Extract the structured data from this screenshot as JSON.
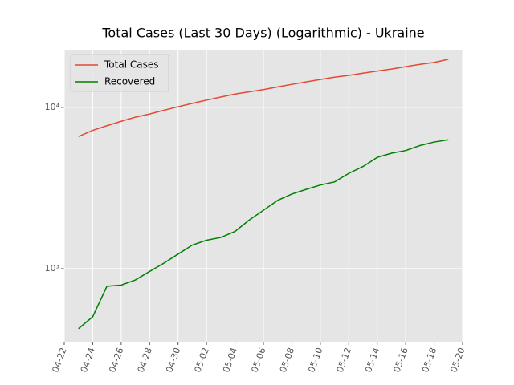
{
  "chart_data": {
    "type": "line",
    "title": "Total Cases (Last 30 Days) (Logarithmic) - Ukraine",
    "x": [
      "04-23",
      "04-24",
      "04-25",
      "04-26",
      "04-27",
      "04-28",
      "04-29",
      "04-30",
      "05-01",
      "05-02",
      "05-03",
      "05-04",
      "05-05",
      "05-06",
      "05-07",
      "05-08",
      "05-09",
      "05-10",
      "05-11",
      "05-12",
      "05-13",
      "05-14",
      "05-15",
      "05-16",
      "05-17",
      "05-18",
      "05-19"
    ],
    "series": [
      {
        "name": "Total Cases",
        "color": "#e24a33",
        "values": [
          6600,
          7200,
          7700,
          8200,
          8700,
          9100,
          9600,
          10100,
          10600,
          11100,
          11600,
          12100,
          12500,
          12900,
          13400,
          13900,
          14400,
          14900,
          15400,
          15800,
          16300,
          16800,
          17300,
          17900,
          18500,
          19000,
          19900
        ]
      },
      {
        "name": "Recovered",
        "color": "#008000",
        "values": [
          424,
          503,
          777,
          790,
          850,
          960,
          1080,
          1230,
          1400,
          1500,
          1560,
          1700,
          2000,
          2300,
          2650,
          2900,
          3100,
          3300,
          3450,
          3900,
          4300,
          4900,
          5200,
          5400,
          5800,
          6100,
          6300
        ]
      }
    ],
    "xlim": [
      "04-22",
      "05-20"
    ],
    "xticks": [
      "04-22",
      "04-24",
      "04-26",
      "04-28",
      "04-30",
      "05-02",
      "05-04",
      "05-06",
      "05-08",
      "05-10",
      "05-12",
      "05-14",
      "05-16",
      "05-18",
      "05-20"
    ],
    "ylim": [
      352,
      22800
    ],
    "yticks": [
      {
        "value": 1000,
        "label": "10³"
      },
      {
        "value": 10000,
        "label": "10⁴"
      }
    ],
    "log_y": true,
    "grid": true,
    "legend": "upper left"
  }
}
